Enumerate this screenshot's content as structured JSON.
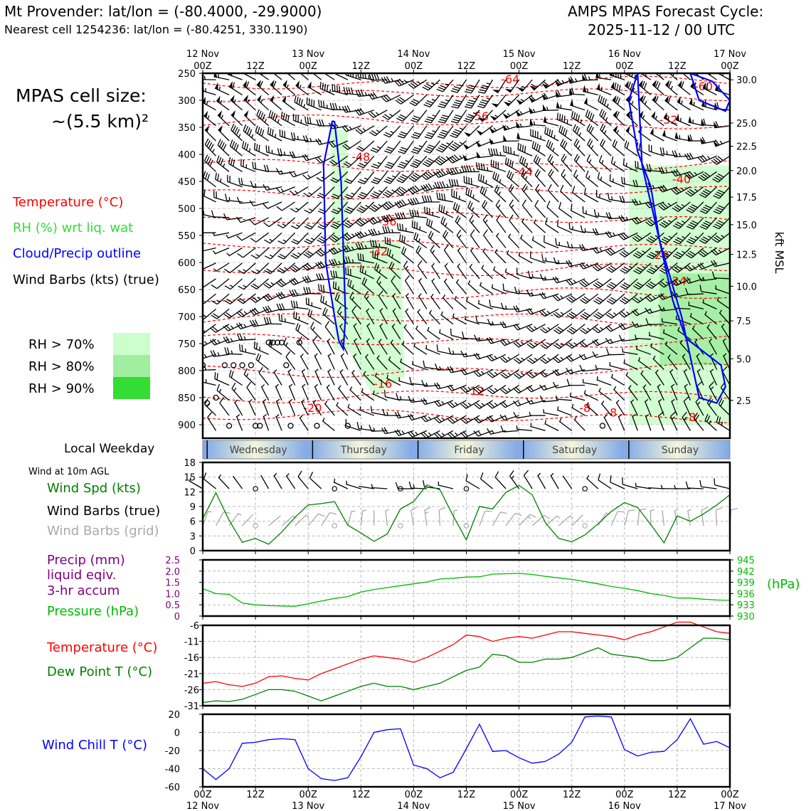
{
  "header": {
    "title_left": "Mt Provender: lat/lon = (-80.4000, -29.9000)",
    "subtitle_left": "Nearest cell 1254236: lat/lon = (-80.4251, 330.1190)",
    "title_right_1": "AMPS MPAS Forecast Cycle:",
    "title_right_2": "2025-11-12 / 00 UTC"
  },
  "left_legend": {
    "cell_size_1": "MPAS cell size:",
    "cell_size_2": "~(5.5 km)²",
    "temperature": "Temperature (°C)",
    "rh": "RH (%) wrt liq. wat",
    "cloud": "Cloud/Precip outline",
    "barbs": "Wind Barbs (kts) (true)",
    "rh70": "RH > 70%",
    "rh80": "RH > 80%",
    "rh90": "RH > 90%",
    "weekday_label": "Local Weekday",
    "wind10m": "Wind at 10m AGL",
    "wind_spd": "Wind Spd (kts)",
    "wind_barbs_true": "Wind Barbs (true)",
    "wind_barbs_grid": "Wind Barbs (grid)",
    "precip_1": "Precip (mm)",
    "precip_2": "liquid eqiv.",
    "precip_3": "3-hr accum",
    "pressure": "Pressure (hPa)",
    "temp2": "Temperature (°C)",
    "dew": "Dew Point T (°C)",
    "windchill": "Wind Chill T (°C)"
  },
  "colors": {
    "temperature": "#ff0000",
    "rh": "#33dd33",
    "cloud": "#0000ff",
    "barbs": "#000000",
    "grid_barbs": "#aaaaaa",
    "wind_spd": "#008000",
    "precip": "#800080",
    "pressure": "#00bb00",
    "dew": "#008000",
    "windchill": "#0000ff",
    "rh70": "#ccffcc",
    "rh80": "#a0eea0",
    "rh90": "#33dd33"
  },
  "chart_data": [
    {
      "type": "heatmap",
      "name": "time-height cross section",
      "x_ticks_top_day": [
        "12 Nov",
        "",
        "13 Nov",
        "",
        "14 Nov",
        "",
        "15 Nov",
        "",
        "16 Nov",
        "",
        "17 Nov"
      ],
      "x_ticks_top_hour": [
        "00Z",
        "12Z",
        "00Z",
        "12Z",
        "00Z",
        "12Z",
        "00Z",
        "12Z",
        "00Z",
        "12Z",
        "00Z"
      ],
      "xlim_hours": [
        0,
        120
      ],
      "ylim_hpa": [
        250,
        925
      ],
      "y_ticks": [
        250,
        300,
        350,
        400,
        450,
        500,
        550,
        600,
        650,
        700,
        750,
        800,
        850,
        900
      ],
      "right_ticks": [
        {
          "label": "30.0",
          "p": 262
        },
        {
          "label": "25.0",
          "p": 342
        },
        {
          "label": "22.5",
          "p": 385
        },
        {
          "label": "20.0",
          "p": 430
        },
        {
          "label": "17.5",
          "p": 479
        },
        {
          "label": "15.0",
          "p": 530
        },
        {
          "label": "12.5",
          "p": 585
        },
        {
          "label": "10.0",
          "p": 644
        },
        {
          "label": "7.5",
          "p": 708
        },
        {
          "label": "5.0",
          "p": 778
        },
        {
          "label": "2.5",
          "p": 855
        }
      ],
      "right_axis_label": "kft MSL",
      "temperature_labels": [
        {
          "text": "-64",
          "t": 70,
          "p": 262
        },
        {
          "text": "-60",
          "t": 114,
          "p": 275
        },
        {
          "text": "-56",
          "t": 63,
          "p": 330
        },
        {
          "text": "-52",
          "t": 106,
          "p": 337
        },
        {
          "text": "-48",
          "t": 36,
          "p": 405
        },
        {
          "text": "-44",
          "t": 73,
          "p": 433
        },
        {
          "text": "-40",
          "t": 109,
          "p": 447
        },
        {
          "text": "-36",
          "t": 42,
          "p": 525
        },
        {
          "text": "-32",
          "t": 40,
          "p": 580
        },
        {
          "text": "-28",
          "t": 104,
          "p": 587
        },
        {
          "text": "-24",
          "t": 108,
          "p": 635
        },
        {
          "text": "-20",
          "t": 25,
          "p": 870
        },
        {
          "text": "-16",
          "t": 41,
          "p": 825
        },
        {
          "text": "-12",
          "t": 62,
          "p": 838
        },
        {
          "text": "-8",
          "t": 93,
          "p": 878
        },
        {
          "text": "-8",
          "t": 111,
          "p": 887
        },
        {
          "text": "-8",
          "t": 87,
          "p": 870
        }
      ],
      "temperature_isotherm_levels": [
        268,
        290,
        340,
        420,
        470,
        520,
        570,
        612,
        660,
        705,
        745,
        800,
        848,
        885
      ],
      "rh_regions": [
        {
          "level": "70",
          "t": [
            29,
            33,
            33,
            30,
            29
          ],
          "p": [
            355,
            355,
            760,
            760,
            355
          ]
        },
        {
          "level": "70",
          "t": [
            33,
            45,
            46,
            39,
            33
          ],
          "p": [
            560,
            560,
            810,
            850,
            760
          ]
        },
        {
          "level": "70",
          "t": [
            97,
            120,
            120,
            97,
            97
          ],
          "p": [
            420,
            420,
            900,
            900,
            420
          ]
        },
        {
          "level": "80",
          "t": [
            104,
            120,
            120,
            104
          ],
          "p": [
            620,
            620,
            790,
            790
          ]
        },
        {
          "level": "90",
          "t": [
            37,
            39
          ],
          "p": [
            770,
            790
          ]
        }
      ],
      "cloud_outlines": [
        {
          "t": [
            29.5,
            27.5,
            28,
            30,
            31,
            32,
            32.5,
            31.5,
            30,
            29.5
          ],
          "p": [
            338,
            420,
            600,
            700,
            745,
            760,
            700,
            450,
            340,
            338
          ]
        },
        {
          "t": [
            99,
            97,
            99,
            102,
            104,
            107,
            110,
            118,
            119,
            117,
            113,
            109,
            104,
            100,
            99
          ],
          "p": [
            250,
            300,
            395,
            460,
            560,
            670,
            740,
            790,
            830,
            860,
            850,
            700,
            560,
            420,
            250
          ]
        },
        {
          "t": [
            111,
            116,
            120,
            119,
            113,
            111
          ],
          "p": [
            250,
            265,
            300,
            320,
            300,
            250
          ]
        }
      ],
      "calm_circles": [
        {
          "t": 0,
          "p": 790
        },
        {
          "t": 1,
          "p": 860
        },
        {
          "t": 3,
          "p": 850
        },
        {
          "t": 5,
          "p": 790
        },
        {
          "t": 6,
          "p": 902
        },
        {
          "t": 7,
          "p": 790
        },
        {
          "t": 9,
          "p": 790
        },
        {
          "t": 11,
          "p": 790
        },
        {
          "t": 12,
          "p": 902
        },
        {
          "t": 13,
          "p": 902
        },
        {
          "t": 15,
          "p": 748
        },
        {
          "t": 16,
          "p": 748
        },
        {
          "t": 17,
          "p": 748
        },
        {
          "t": 18,
          "p": 748
        },
        {
          "t": 19,
          "p": 790
        },
        {
          "t": 20,
          "p": 902
        },
        {
          "t": 22,
          "p": 748
        },
        {
          "t": 26,
          "p": 902
        },
        {
          "t": 33,
          "p": 902
        },
        {
          "t": 91,
          "p": 902
        }
      ]
    },
    {
      "type": "table",
      "name": "weekday strip",
      "labels": [
        "Wednesday",
        "Thursday",
        "Friday",
        "Saturday",
        "Sunday"
      ],
      "tick_hours": [
        1,
        25,
        49,
        73,
        97
      ]
    },
    {
      "type": "line",
      "name": "10m wind speed",
      "x_hours": [
        0,
        3,
        6,
        9,
        12,
        15,
        18,
        21,
        24,
        27,
        30,
        33,
        36,
        39,
        42,
        45,
        48,
        51,
        54,
        57,
        60,
        63,
        66,
        69,
        72,
        75,
        78,
        81,
        84,
        87,
        90,
        93,
        96,
        99,
        102,
        105,
        108,
        111,
        114,
        117,
        120
      ],
      "series": [
        {
          "name": "Wind Spd (kts)",
          "values": [
            6.5,
            11.8,
            6.2,
            1.7,
            2.5,
            1.3,
            3.8,
            6.8,
            9.3,
            9.6,
            10,
            5.2,
            3.6,
            1.9,
            3.4,
            8.5,
            10,
            13.4,
            12.4,
            7.1,
            2.2,
            9,
            8.5,
            11.9,
            13.3,
            11.4,
            5.7,
            2.5,
            1.8,
            3.2,
            5.5,
            8,
            9.8,
            8.8,
            5.3,
            1.6,
            7.1,
            6,
            7.5,
            9.3,
            11.4
          ]
        }
      ],
      "ylim": [
        0,
        18
      ],
      "y_ticks": [
        0,
        3,
        6,
        9,
        12,
        15,
        18
      ],
      "calm_true": [
        8,
        10,
        12,
        30,
        45,
        60,
        73,
        87,
        101
      ],
      "calm_grid": [
        8,
        10,
        12,
        30,
        45,
        60,
        87,
        101
      ]
    },
    {
      "type": "line",
      "name": "precip and pressure",
      "left_axis_label": "Precip (mm)",
      "left_ticks": [
        "0",
        "0.5",
        "1.0",
        "1.5",
        "2.0",
        "2.5"
      ],
      "ylim_left": [
        0,
        2.5
      ],
      "right_ticks": [
        "930",
        "933",
        "936",
        "939",
        "942",
        "945"
      ],
      "ylim_right": [
        930,
        945
      ],
      "right_axis_label": "(hPa)",
      "x_hours": [
        0,
        3,
        6,
        9,
        12,
        15,
        18,
        21,
        24,
        27,
        30,
        33,
        36,
        39,
        42,
        45,
        48,
        51,
        54,
        57,
        60,
        63,
        66,
        69,
        72,
        75,
        78,
        81,
        84,
        87,
        90,
        93,
        96,
        99,
        102,
        105,
        108,
        111,
        114,
        117,
        120
      ],
      "series": [
        {
          "name": "Pressure (hPa)",
          "values": [
            937.3,
            936.0,
            935.8,
            933.5,
            933.0,
            932.8,
            932.7,
            932.6,
            933.3,
            934.0,
            934.7,
            935.2,
            936.4,
            937.1,
            937.6,
            938.1,
            938.6,
            939.1,
            939.9,
            940.1,
            940.4,
            940.5,
            941.2,
            941.3,
            941.4,
            941.1,
            940.6,
            940.2,
            939.8,
            939.2,
            938.6,
            937.9,
            937.4,
            936.8,
            936.0,
            935.5,
            934.8,
            934.8,
            934.5,
            934.3,
            934.2
          ]
        },
        {
          "name": "Precip (mm)",
          "values": []
        }
      ]
    },
    {
      "type": "line",
      "name": "temperature and dew point",
      "x_hours": [
        0,
        3,
        6,
        9,
        12,
        15,
        18,
        21,
        24,
        27,
        30,
        33,
        36,
        39,
        42,
        45,
        48,
        51,
        54,
        57,
        60,
        63,
        66,
        69,
        72,
        75,
        78,
        81,
        84,
        87,
        90,
        93,
        96,
        99,
        102,
        105,
        108,
        111,
        114,
        117,
        120
      ],
      "series": [
        {
          "name": "Temperature (°C)",
          "values": [
            -24,
            -23.5,
            -24.5,
            -25,
            -24,
            -22,
            -21.7,
            -22.5,
            -23,
            -21,
            -19.5,
            -18,
            -16.5,
            -15.5,
            -16,
            -16.5,
            -17.5,
            -16,
            -14,
            -12,
            -9,
            -9.5,
            -11,
            -10,
            -9.5,
            -10,
            -9,
            -8,
            -8,
            -8.5,
            -9,
            -9.5,
            -10.5,
            -9,
            -8,
            -6.5,
            -5,
            -5,
            -6.5,
            -8,
            -8.5
          ]
        },
        {
          "name": "Dew Point T (°C)",
          "values": [
            -30,
            -29.5,
            -29.7,
            -29,
            -27.5,
            -26,
            -26,
            -26.5,
            -28,
            -29.5,
            -28,
            -26.5,
            -25,
            -24,
            -25,
            -25,
            -26,
            -25,
            -24,
            -22,
            -20,
            -19,
            -15,
            -15.5,
            -17.5,
            -17.5,
            -16.5,
            -16.5,
            -16,
            -14.5,
            -13,
            -15,
            -15.5,
            -16,
            -17,
            -17,
            -16,
            -13,
            -10,
            -10,
            -10.5
          ]
        }
      ],
      "ylim": [
        -31,
        -6
      ],
      "y_ticks": [
        -31,
        -26,
        -21,
        -16,
        -11,
        -6
      ]
    },
    {
      "type": "line",
      "name": "wind chill",
      "x_hours": [
        0,
        3,
        6,
        9,
        12,
        15,
        18,
        21,
        24,
        27,
        30,
        33,
        36,
        39,
        42,
        45,
        48,
        51,
        54,
        57,
        60,
        63,
        66,
        69,
        72,
        75,
        78,
        81,
        84,
        87,
        90,
        93,
        96,
        99,
        102,
        105,
        108,
        111,
        114,
        117,
        120
      ],
      "series": [
        {
          "name": "Wind Chill T (°C)",
          "values": [
            -40,
            -52,
            -40,
            -12,
            -11,
            -8,
            -7,
            -8,
            -40,
            -51,
            -53,
            -50,
            -27,
            0,
            3,
            4,
            -36,
            -40,
            -50,
            -44,
            -18,
            9,
            -21,
            -20,
            -28,
            -34,
            -32,
            -24,
            -11,
            17,
            18,
            17,
            -19,
            -26,
            -22,
            -21,
            -8,
            15,
            -13,
            -10,
            -17
          ]
        }
      ],
      "ylim": [
        -60,
        20
      ],
      "y_ticks": [
        -60,
        -40,
        -20,
        0,
        20
      ]
    }
  ],
  "bottom_axis": {
    "hours": [
      "00Z",
      "12Z",
      "00Z",
      "12Z",
      "00Z",
      "12Z",
      "00Z",
      "12Z",
      "00Z",
      "12Z",
      "00Z"
    ],
    "days": [
      "12 Nov",
      "",
      "13 Nov",
      "",
      "14 Nov",
      "",
      "15 Nov",
      "",
      "16 Nov",
      "",
      "17 Nov"
    ]
  }
}
